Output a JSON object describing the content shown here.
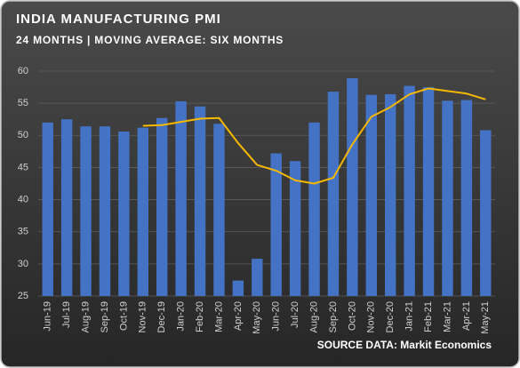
{
  "chart_data": {
    "type": "bar",
    "title": "INDIA MANUFACTURING PMI",
    "subtitle": "24 MONTHS | MOVING AVERAGE: SIX MONTHS",
    "source": "SOURCE DATA: Markit Economics",
    "categories": [
      "Jun-19",
      "Jul-19",
      "Aug-19",
      "Sep-19",
      "Oct-19",
      "Nov-19",
      "Dec-19",
      "Jan-20",
      "Feb-20",
      "Mar-20",
      "Apr-20",
      "May-20",
      "Jun-20",
      "Jul-20",
      "Aug-20",
      "Sep-20",
      "Oct-20",
      "Nov-20",
      "Dec-20",
      "Jan-21",
      "Feb-21",
      "Mar-21",
      "Apr-21",
      "May-21"
    ],
    "series": [
      {
        "type": "bar",
        "color": "#4472c4",
        "values": [
          52.0,
          52.5,
          51.4,
          51.4,
          50.6,
          51.2,
          52.7,
          55.3,
          54.5,
          51.8,
          27.4,
          30.8,
          47.2,
          46.0,
          52.0,
          56.8,
          58.9,
          56.3,
          56.4,
          57.7,
          57.5,
          55.4,
          55.5,
          50.8
        ]
      },
      {
        "type": "line",
        "color": "#f5b800",
        "values": [
          null,
          null,
          null,
          null,
          null,
          51.5,
          51.6,
          52.1,
          52.6,
          52.7,
          48.8,
          45.4,
          44.5,
          43.0,
          42.5,
          43.4,
          48.6,
          52.9,
          54.4,
          56.4,
          57.3,
          56.9,
          56.5,
          55.6
        ]
      }
    ],
    "ylim": [
      25,
      60
    ],
    "yticks": [
      25,
      30,
      35,
      40,
      45,
      50,
      55,
      60
    ],
    "grid": true
  }
}
